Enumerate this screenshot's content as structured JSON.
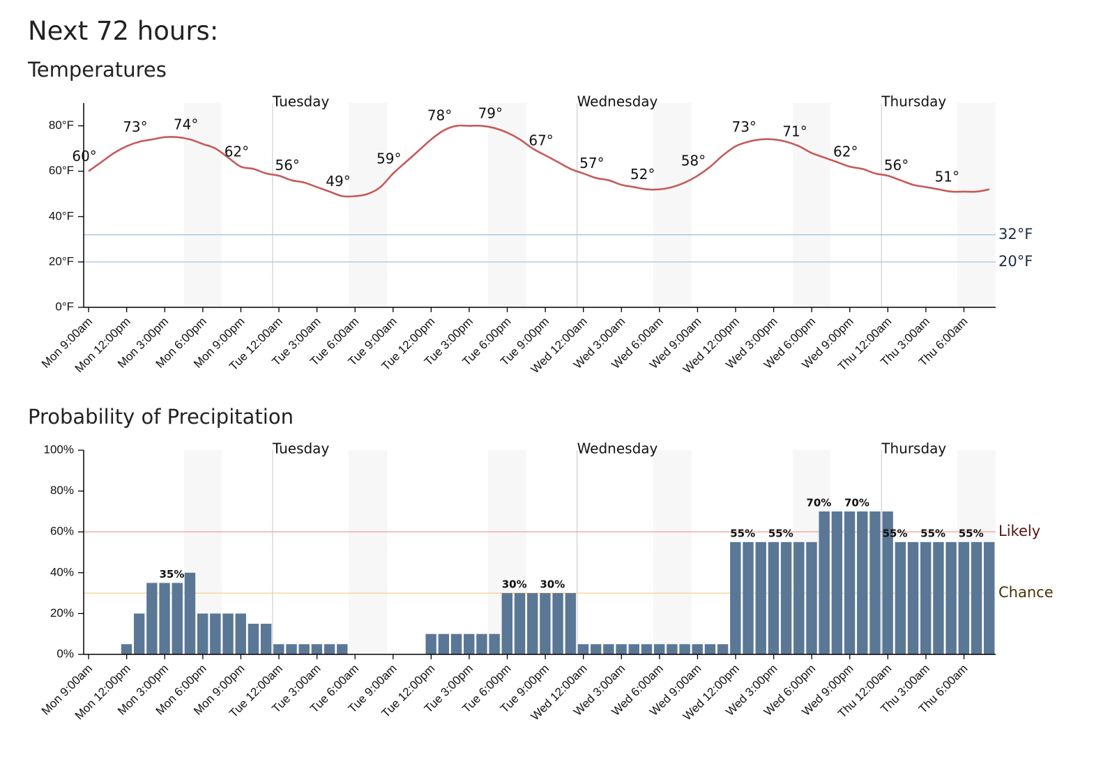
{
  "heading": "Next 72 hours:",
  "chart_data": [
    {
      "type": "line",
      "title": "Temperatures",
      "color": "#c65a5a",
      "categories": [
        "Mon 9:00am",
        null,
        null,
        "Mon 12:00pm",
        null,
        null,
        "Mon 3:00pm",
        null,
        null,
        "Mon 6:00pm",
        null,
        null,
        "Mon 9:00pm",
        null,
        null,
        "Tue 12:00am",
        null,
        null,
        "Tue 3:00am",
        null,
        null,
        "Tue 6:00am",
        null,
        null,
        "Tue 9:00am",
        null,
        null,
        "Tue 12:00pm",
        null,
        null,
        "Tue 3:00pm",
        null,
        null,
        "Tue 6:00pm",
        null,
        null,
        "Tue 9:00pm",
        null,
        null,
        "Wed 12:00am",
        null,
        null,
        "Wed 3:00am",
        null,
        null,
        "Wed 6:00am",
        null,
        null,
        "Wed 9:00am",
        null,
        null,
        "Wed 12:00pm",
        null,
        null,
        "Wed 3:00pm",
        null,
        null,
        "Wed 6:00pm",
        null,
        null,
        "Wed 9:00pm",
        null,
        null,
        "Thu 12:00am",
        null,
        null,
        "Thu 3:00am",
        null,
        null,
        "Thu 6:00am",
        null,
        null
      ],
      "days": [
        "Tuesday",
        "Wednesday",
        "Thursday"
      ],
      "values": [
        60,
        64,
        68,
        71,
        73,
        74,
        75,
        75,
        74,
        72,
        70,
        66,
        62,
        61,
        59,
        58,
        56,
        55,
        53,
        51,
        49,
        49,
        50,
        53,
        59,
        64,
        69,
        74,
        78,
        80,
        80,
        80,
        79,
        77,
        74,
        70,
        67,
        64,
        61,
        59,
        57,
        56,
        54,
        53,
        52,
        52,
        53,
        55,
        58,
        62,
        67,
        71,
        73,
        74,
        74,
        73,
        71,
        68,
        66,
        64,
        62,
        61,
        59,
        58,
        56,
        54,
        53,
        52,
        51,
        51,
        51,
        52
      ],
      "value_labels": [
        "60°",
        null,
        null,
        null,
        "73°",
        null,
        null,
        null,
        "74°",
        null,
        null,
        null,
        "62°",
        null,
        null,
        null,
        "56°",
        null,
        null,
        null,
        "49°",
        null,
        null,
        null,
        "59°",
        null,
        null,
        null,
        "78°",
        null,
        null,
        null,
        "79°",
        null,
        null,
        null,
        "67°",
        null,
        null,
        null,
        "57°",
        null,
        null,
        null,
        "52°",
        null,
        null,
        null,
        "58°",
        null,
        null,
        null,
        "73°",
        null,
        null,
        null,
        "71°",
        null,
        null,
        null,
        "62°",
        null,
        null,
        null,
        "56°",
        null,
        null,
        null,
        "51°",
        null,
        null,
        null
      ],
      "ylim": [
        0,
        90
      ],
      "yticks": [
        {
          "value": 0,
          "label": "0°F"
        },
        {
          "value": 20,
          "label": "20°F"
        },
        {
          "value": 40,
          "label": "40°F"
        },
        {
          "value": 60,
          "label": "60°F"
        },
        {
          "value": 80,
          "label": "80°F"
        }
      ],
      "reference_lines": [
        {
          "value": 32,
          "label": "32°F",
          "color": "#a9c1da",
          "label_color": "#1c2c46"
        },
        {
          "value": 20,
          "label": "20°F",
          "color": "#a9c1da",
          "label_color": "#1c2c46"
        }
      ]
    },
    {
      "type": "bar",
      "title": "Probability of Precipitation",
      "color": "#5b7796",
      "categories": [
        "Mon 9:00am",
        null,
        null,
        "Mon 12:00pm",
        null,
        null,
        "Mon 3:00pm",
        null,
        null,
        "Mon 6:00pm",
        null,
        null,
        "Mon 9:00pm",
        null,
        null,
        "Tue 12:00am",
        null,
        null,
        "Tue 3:00am",
        null,
        null,
        "Tue 6:00am",
        null,
        null,
        "Tue 9:00am",
        null,
        null,
        "Tue 12:00pm",
        null,
        null,
        "Tue 3:00pm",
        null,
        null,
        "Tue 6:00pm",
        null,
        null,
        "Tue 9:00pm",
        null,
        null,
        "Wed 12:00am",
        null,
        null,
        "Wed 3:00am",
        null,
        null,
        "Wed 6:00am",
        null,
        null,
        "Wed 9:00am",
        null,
        null,
        "Wed 12:00pm",
        null,
        null,
        "Wed 3:00pm",
        null,
        null,
        "Wed 6:00pm",
        null,
        null,
        "Wed 9:00pm",
        null,
        null,
        "Thu 12:00am",
        null,
        null,
        "Thu 3:00am",
        null,
        null,
        "Thu 6:00am",
        null,
        null
      ],
      "days": [
        "Tuesday",
        "Wednesday",
        "Thursday"
      ],
      "values": [
        0,
        0,
        0,
        5,
        20,
        35,
        35,
        35,
        40,
        20,
        20,
        20,
        20,
        15,
        15,
        5,
        5,
        5,
        5,
        5,
        5,
        0,
        0,
        0,
        0,
        0,
        0,
        10,
        10,
        10,
        10,
        10,
        10,
        30,
        30,
        30,
        30,
        30,
        30,
        5,
        5,
        5,
        5,
        5,
        5,
        5,
        5,
        5,
        5,
        5,
        5,
        55,
        55,
        55,
        55,
        55,
        55,
        55,
        70,
        70,
        70,
        70,
        70,
        70,
        55,
        55,
        55,
        55,
        55,
        55,
        55,
        55
      ],
      "value_labels": [
        null,
        null,
        null,
        null,
        null,
        null,
        null,
        "35%",
        null,
        null,
        null,
        null,
        null,
        null,
        null,
        null,
        null,
        null,
        null,
        null,
        null,
        null,
        null,
        null,
        null,
        null,
        null,
        null,
        null,
        null,
        null,
        null,
        null,
        null,
        "30%",
        null,
        null,
        "30%",
        null,
        null,
        null,
        null,
        null,
        null,
        null,
        null,
        null,
        null,
        null,
        null,
        null,
        null,
        "55%",
        null,
        null,
        "55%",
        null,
        null,
        "70%",
        null,
        null,
        "70%",
        null,
        null,
        "55%",
        null,
        null,
        "55%",
        null,
        null,
        "55%",
        null
      ],
      "ylim": [
        0,
        100
      ],
      "yticks": [
        {
          "value": 0,
          "label": "0%"
        },
        {
          "value": 20,
          "label": "20%"
        },
        {
          "value": 40,
          "label": "40%"
        },
        {
          "value": 60,
          "label": "60%"
        },
        {
          "value": 80,
          "label": "80%"
        },
        {
          "value": 100,
          "label": "100%"
        }
      ],
      "reference_lines": [
        {
          "value": 60,
          "label": "Likely",
          "color": "#f2a3a3",
          "label_color": "#5a1212"
        },
        {
          "value": 30,
          "label": "Chance",
          "color": "#f3cf8c",
          "label_color": "#4a3204"
        }
      ]
    }
  ]
}
